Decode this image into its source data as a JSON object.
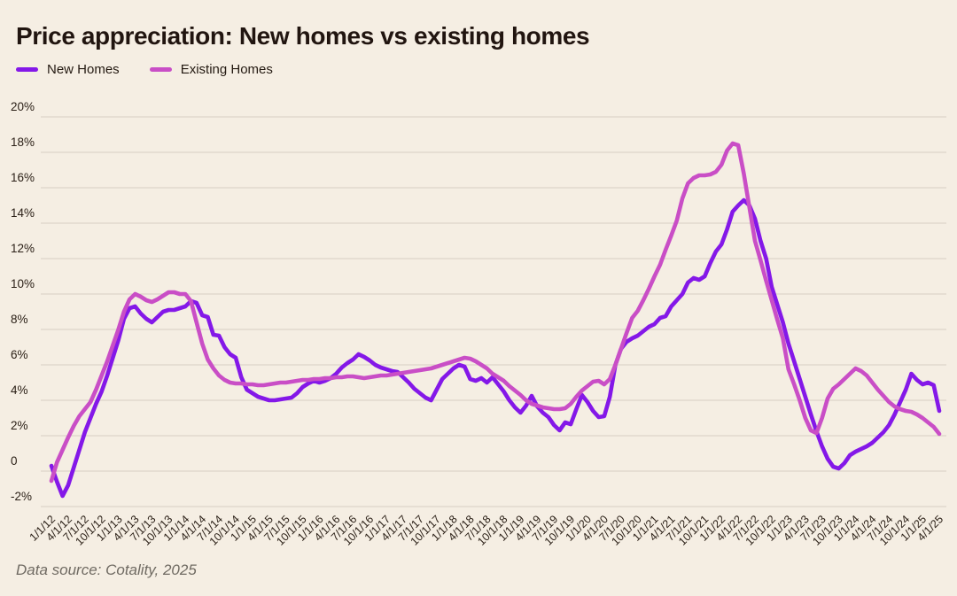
{
  "title": "Price appreciation: New homes vs existing homes",
  "footer": "Data source: Cotality, 2025",
  "legend": {
    "items": [
      {
        "label": "New Homes",
        "color": "#8418e8"
      },
      {
        "label": "Existing Homes",
        "color": "#c94ec6"
      }
    ]
  },
  "colors": {
    "background": "#f5eee3",
    "gridline": "#d6cfc3",
    "axis_text": "#2b2017",
    "new_homes_line": "#8418e8",
    "existing_homes_line": "#c94ec6"
  },
  "chart_data": {
    "type": "line",
    "title": "Price appreciation: New homes vs existing homes",
    "xlabel": "",
    "ylabel": "",
    "ylim": [
      -2.6,
      21
    ],
    "grid": "horizontal",
    "legend_position": "top-left",
    "x_unit": "monthly points, quarterly tick labels",
    "y_ticks": [
      {
        "value": 20,
        "label": "20%"
      },
      {
        "value": 18,
        "label": "18%"
      },
      {
        "value": 16,
        "label": "16%"
      },
      {
        "value": 14,
        "label": "14%"
      },
      {
        "value": 12,
        "label": "12%"
      },
      {
        "value": 10,
        "label": "10%"
      },
      {
        "value": 8,
        "label": "8%"
      },
      {
        "value": 6,
        "label": "6%"
      },
      {
        "value": 4,
        "label": "4%"
      },
      {
        "value": 2,
        "label": "2%"
      },
      {
        "value": 0,
        "label": "0"
      },
      {
        "value": -2,
        "label": "-2%"
      }
    ],
    "x_tick_labels": [
      "1/1/12",
      "4/1/12",
      "7/1/12",
      "10/1/12",
      "1/1/13",
      "4/1/13",
      "7/1/13",
      "10/1/13",
      "1/1/14",
      "4/1/14",
      "7/1/14",
      "10/1/14",
      "1/1/15",
      "4/1/15",
      "7/1/15",
      "10/1/15",
      "1/1/16",
      "4/1/16",
      "7/1/16",
      "10/1/16",
      "1/1/17",
      "4/1/17",
      "7/1/17",
      "10/1/17",
      "1/1/18",
      "4/1/18",
      "7/1/18",
      "10/1/18",
      "1/1/19",
      "4/1/19",
      "7/1/19",
      "10/1/19",
      "1/1/20",
      "4/1/20",
      "7/1/20",
      "10/1/20",
      "1/1/21",
      "4/1/21",
      "7/1/21",
      "10/1/21",
      "1/1/22",
      "4/1/22",
      "7/1/22",
      "10/1/22",
      "1/1/23",
      "4/1/23",
      "7/1/23",
      "10/1/23",
      "1/1/24",
      "4/1/24",
      "7/1/24",
      "10/1/24",
      "1/1/25",
      "4/1/25"
    ],
    "months_per_tick": 3,
    "series": [
      {
        "name": "New Homes",
        "color": "#8418e8",
        "values": [
          0.3,
          -0.6,
          -1.4,
          -0.8,
          0.2,
          1.2,
          2.2,
          3.0,
          3.8,
          4.5,
          5.4,
          6.4,
          7.4,
          8.6,
          9.2,
          9.3,
          8.9,
          8.6,
          8.4,
          8.7,
          9.0,
          9.1,
          9.1,
          9.2,
          9.3,
          9.6,
          9.5,
          8.8,
          8.7,
          7.7,
          7.65,
          7.0,
          6.6,
          6.4,
          5.3,
          4.6,
          4.4,
          4.2,
          4.1,
          4.0,
          4.0,
          4.05,
          4.1,
          4.15,
          4.4,
          4.75,
          4.95,
          5.1,
          5.0,
          5.1,
          5.25,
          5.5,
          5.85,
          6.1,
          6.3,
          6.6,
          6.45,
          6.25,
          6.0,
          5.85,
          5.75,
          5.65,
          5.6,
          5.3,
          5.0,
          4.65,
          4.4,
          4.15,
          4.0,
          4.6,
          5.2,
          5.5,
          5.8,
          6.0,
          5.9,
          5.2,
          5.1,
          5.25,
          5.0,
          5.3,
          4.9,
          4.5,
          4.0,
          3.6,
          3.3,
          3.7,
          4.25,
          3.65,
          3.3,
          3.05,
          2.6,
          2.3,
          2.75,
          2.65,
          3.5,
          4.3,
          3.9,
          3.4,
          3.05,
          3.1,
          4.2,
          6.0,
          6.9,
          7.3,
          7.5,
          7.65,
          7.9,
          8.15,
          8.3,
          8.65,
          8.75,
          9.3,
          9.65,
          10.0,
          10.65,
          10.9,
          10.8,
          11.0,
          11.75,
          12.4,
          12.8,
          13.65,
          14.65,
          15.0,
          15.3,
          15.0,
          14.25,
          13.0,
          12.0,
          10.4,
          9.4,
          8.4,
          7.2,
          6.2,
          5.2,
          4.2,
          3.2,
          2.25,
          1.4,
          0.7,
          0.25,
          0.15,
          0.45,
          0.9,
          1.1,
          1.25,
          1.4,
          1.6,
          1.9,
          2.2,
          2.6,
          3.2,
          3.9,
          4.6,
          5.5,
          5.15,
          4.9,
          5.0,
          4.85,
          3.4
        ]
      },
      {
        "name": "Existing Homes",
        "color": "#c94ec6",
        "values": [
          -0.55,
          0.5,
          1.2,
          1.9,
          2.55,
          3.1,
          3.5,
          3.9,
          4.6,
          5.4,
          6.2,
          7.1,
          8.0,
          9.0,
          9.7,
          10.0,
          9.85,
          9.65,
          9.55,
          9.7,
          9.9,
          10.1,
          10.1,
          10.0,
          10.0,
          9.6,
          8.4,
          7.2,
          6.3,
          5.8,
          5.4,
          5.15,
          5.0,
          4.95,
          4.95,
          4.9,
          4.9,
          4.85,
          4.85,
          4.9,
          4.95,
          5.0,
          5.0,
          5.05,
          5.1,
          5.15,
          5.15,
          5.2,
          5.2,
          5.25,
          5.25,
          5.3,
          5.3,
          5.35,
          5.35,
          5.3,
          5.25,
          5.3,
          5.35,
          5.4,
          5.4,
          5.45,
          5.5,
          5.55,
          5.6,
          5.65,
          5.7,
          5.75,
          5.8,
          5.9,
          6.0,
          6.1,
          6.2,
          6.3,
          6.4,
          6.35,
          6.2,
          6.0,
          5.8,
          5.5,
          5.3,
          5.1,
          4.8,
          4.55,
          4.3,
          4.0,
          3.8,
          3.7,
          3.6,
          3.55,
          3.5,
          3.5,
          3.55,
          3.8,
          4.2,
          4.55,
          4.8,
          5.05,
          5.1,
          4.9,
          5.2,
          6.0,
          6.9,
          7.8,
          8.65,
          9.05,
          9.65,
          10.3,
          11.0,
          11.65,
          12.5,
          13.3,
          14.15,
          15.4,
          16.25,
          16.55,
          16.7,
          16.7,
          16.75,
          16.9,
          17.3,
          18.1,
          18.5,
          18.4,
          16.8,
          14.9,
          13.0,
          11.9,
          10.75,
          9.65,
          8.55,
          7.5,
          5.75,
          4.9,
          4.0,
          3.0,
          2.3,
          2.15,
          3.0,
          4.1,
          4.65,
          4.9,
          5.2,
          5.5,
          5.8,
          5.65,
          5.4,
          5.0,
          4.6,
          4.25,
          3.9,
          3.65,
          3.5,
          3.4,
          3.35,
          3.2,
          3.0,
          2.75,
          2.5,
          2.1
        ]
      }
    ]
  }
}
